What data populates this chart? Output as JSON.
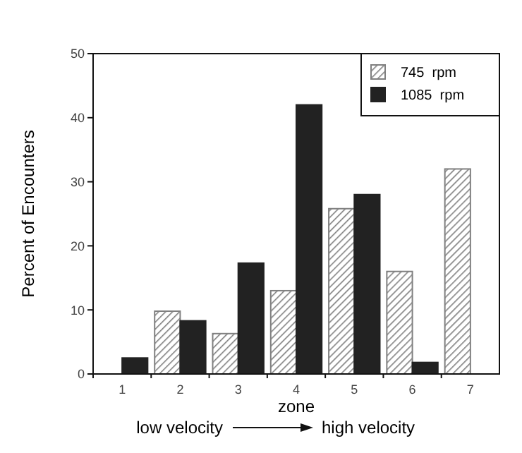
{
  "chart_data": {
    "type": "bar",
    "xlabel": "zone",
    "ylabel": "Percent of Encounters",
    "categories": [
      "1",
      "2",
      "3",
      "4",
      "5",
      "6",
      "7"
    ],
    "series": [
      {
        "name": "745  rpm",
        "color": "#808080",
        "values": [
          null,
          9.8,
          6.3,
          13,
          25.8,
          16,
          32
        ]
      },
      {
        "name": "1085  rpm",
        "color": "#222222",
        "values": [
          2.5,
          8.3,
          17.3,
          42,
          28,
          1.8,
          null
        ]
      }
    ],
    "ylim": [
      0,
      50
    ],
    "yticks": [
      0,
      10,
      20,
      30,
      40,
      50
    ],
    "grid": false,
    "legend": "top right",
    "annotations": [
      "low velocity",
      "high velocity"
    ]
  }
}
